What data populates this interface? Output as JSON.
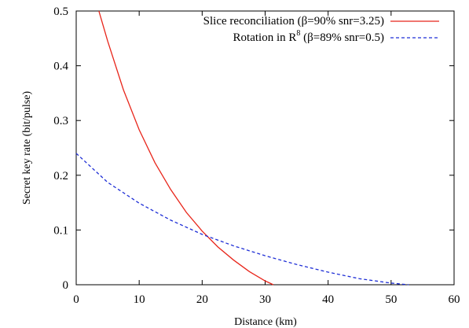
{
  "chart_data": {
    "type": "line",
    "xlabel": "Distance (km)",
    "ylabel": "Secret key rate (bit/pulse)",
    "xlim": [
      0,
      60
    ],
    "ylim": [
      0,
      0.5
    ],
    "xticks": [
      0,
      10,
      20,
      30,
      40,
      50,
      60
    ],
    "yticks": [
      0,
      0.1,
      0.2,
      0.3,
      0.4,
      0.5
    ],
    "xtick_labels": [
      "0",
      "10",
      "20",
      "30",
      "40",
      "50",
      "60"
    ],
    "ytick_labels": [
      "0",
      "0.1",
      "0.2",
      "0.3",
      "0.4",
      "0.5"
    ],
    "grid": false,
    "legend_position": "top-right",
    "series": [
      {
        "name": "Slice reconciliation (β=90% snr=3.25)",
        "color": "#e8251a",
        "dash": "solid",
        "x": [
          3.6,
          5,
          7.5,
          10,
          12.5,
          15,
          17.5,
          20,
          22.5,
          25,
          27.5,
          30,
          31.3
        ],
        "y": [
          0.5,
          0.445,
          0.356,
          0.283,
          0.223,
          0.174,
          0.132,
          0.098,
          0.069,
          0.045,
          0.024,
          0.007,
          0
        ]
      },
      {
        "name_main": "Rotation in R",
        "name_sup": "8",
        "name_rest": " (β=89% snr=0.5)",
        "color": "#1f2fd6",
        "dash": "dashed",
        "x": [
          0,
          5,
          10,
          15,
          20,
          25,
          30,
          35,
          40,
          45,
          50,
          52.8
        ],
        "y": [
          0.24,
          0.187,
          0.149,
          0.118,
          0.092,
          0.071,
          0.053,
          0.037,
          0.023,
          0.011,
          0.003,
          0
        ]
      }
    ]
  }
}
